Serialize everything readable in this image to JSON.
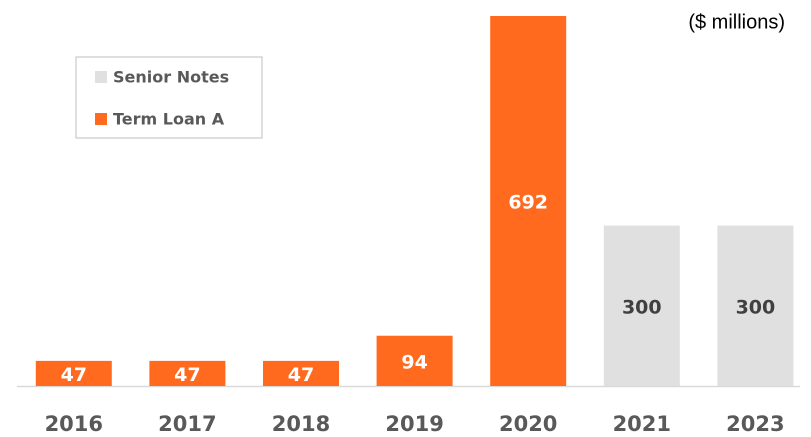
{
  "chart_data": {
    "type": "bar",
    "stacked": true,
    "annotation": "($ millions)",
    "categories": [
      "2016",
      "2017",
      "2018",
      "2019",
      "2020",
      "2021",
      "2023"
    ],
    "series": [
      {
        "name": "Term Loan A",
        "color": "#ff6a1f",
        "label_color": "#ffffff",
        "values": [
          47,
          47,
          47,
          94,
          692,
          null,
          null
        ]
      },
      {
        "name": "Senior Notes",
        "color": "#e0e0e0",
        "label_color": "#404040",
        "values": [
          null,
          null,
          null,
          null,
          null,
          300,
          300
        ]
      }
    ],
    "legend": "upper left"
  }
}
